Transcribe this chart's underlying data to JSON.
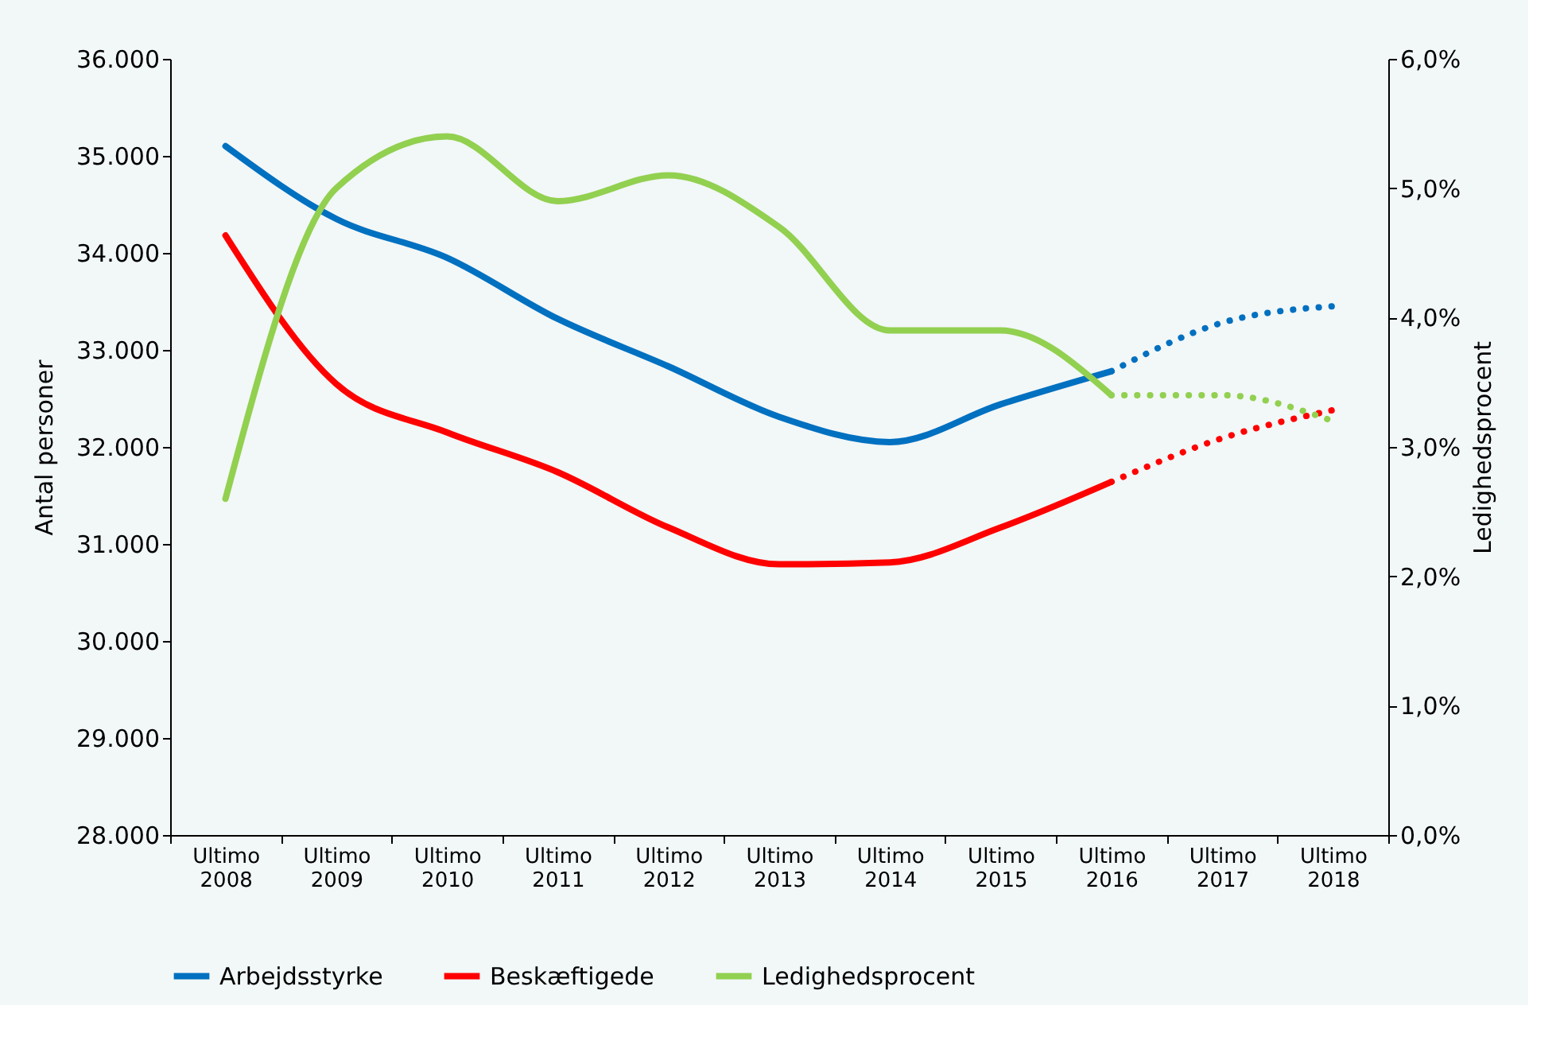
{
  "chart_data": {
    "type": "line",
    "ylabel": "Antal personer",
    "y2label": "Ledighedsprocent",
    "categories": [
      "Ultimo 2008",
      "Ultimo 2009",
      "Ultimo 2010",
      "Ultimo 2011",
      "Ultimo 2012",
      "Ultimo 2013",
      "Ultimo 2014",
      "Ultimo 2015",
      "Ultimo 2016",
      "Ultimo 2017",
      "Ultimo 2018"
    ],
    "series": [
      {
        "name": "Arbejdsstyrke",
        "color": "#0070c0",
        "line_style": "solid",
        "values": [
          35100,
          34350,
          33950,
          33320,
          32830,
          32310,
          32050,
          32440,
          32780,
          null,
          null
        ]
      },
      {
        "color": "#0070c0",
        "line_style": "dotted",
        "values": [
          null,
          null,
          null,
          null,
          null,
          null,
          null,
          null,
          32780,
          33280,
          33450
        ]
      },
      {
        "name": "Beskæftigede",
        "color": "#ff0000",
        "line_style": "solid",
        "values": [
          34180,
          32650,
          32150,
          31740,
          31170,
          30790,
          30810,
          31170,
          31640,
          null,
          null
        ]
      },
      {
        "color": "#ff0000",
        "line_style": "dotted",
        "values": [
          null,
          null,
          null,
          null,
          null,
          null,
          null,
          null,
          31640,
          32090,
          32380
        ]
      },
      {
        "name": "Ledighedsprocent",
        "color": "#92d050",
        "line_style": "solid",
        "axis": "y2",
        "values": [
          2.6,
          5.0,
          5.4,
          4.9,
          5.1,
          4.7,
          3.9,
          3.9,
          3.4,
          null,
          null
        ]
      },
      {
        "color": "#92d050",
        "line_style": "dotted",
        "axis": "y2",
        "values": [
          null,
          null,
          null,
          null,
          null,
          null,
          null,
          null,
          3.4,
          3.4,
          3.2
        ]
      }
    ],
    "ylim": [
      28000,
      36000
    ],
    "yticks": [
      {
        "value": 28000,
        "label": "28.000"
      },
      {
        "value": 29000,
        "label": "29.000"
      },
      {
        "value": 30000,
        "label": "30.000"
      },
      {
        "value": 31000,
        "label": "31.000"
      },
      {
        "value": 32000,
        "label": "32.000"
      },
      {
        "value": 33000,
        "label": "33.000"
      },
      {
        "value": 34000,
        "label": "34.000"
      },
      {
        "value": 35000,
        "label": "35.000"
      },
      {
        "value": 36000,
        "label": "36.000"
      }
    ],
    "y2lim": [
      0,
      6
    ],
    "y2ticks": [
      {
        "value": 0,
        "label": "0,0%"
      },
      {
        "value": 1,
        "label": "1,0%"
      },
      {
        "value": 2,
        "label": "2,0%"
      },
      {
        "value": 3,
        "label": "3,0%"
      },
      {
        "value": 4,
        "label": "4,0%"
      },
      {
        "value": 5,
        "label": "5,0%"
      },
      {
        "value": 6,
        "label": "6,0%"
      }
    ],
    "grid": false,
    "legend": "bottom",
    "marker": "none"
  }
}
